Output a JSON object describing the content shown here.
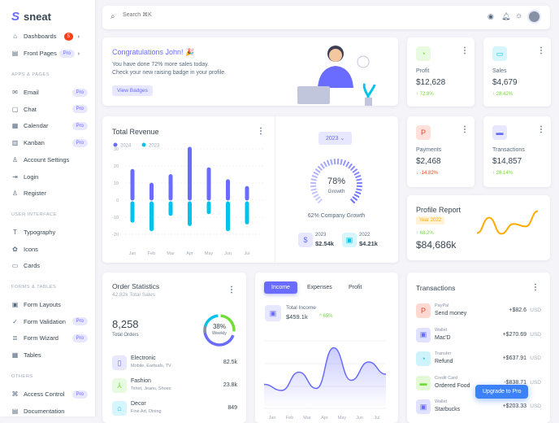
{
  "brand": "sneat",
  "sidebar": {
    "items": [
      {
        "label": "Dashboards",
        "icon": "home-icon",
        "badge": "5",
        "chevron": "›"
      },
      {
        "label": "Front Pages",
        "icon": "file-icon",
        "badge": "Pro",
        "chevron": "›"
      }
    ],
    "sections": [
      {
        "title": "APPS & PAGES",
        "items": [
          {
            "label": "Email",
            "icon": "mail-icon",
            "badge": "Pro"
          },
          {
            "label": "Chat",
            "icon": "chat-icon",
            "badge": "Pro"
          },
          {
            "label": "Calendar",
            "icon": "calendar-icon",
            "badge": "Pro"
          },
          {
            "label": "Kanban",
            "icon": "kanban-icon",
            "badge": "Pro"
          },
          {
            "label": "Account Settings",
            "icon": "user-icon"
          },
          {
            "label": "Login",
            "icon": "login-icon"
          },
          {
            "label": "Register",
            "icon": "user-plus-icon"
          }
        ]
      },
      {
        "title": "USER INTERFACE",
        "items": [
          {
            "label": "Typography",
            "icon": "typography-icon"
          },
          {
            "label": "Icons",
            "icon": "crown-icon"
          },
          {
            "label": "Cards",
            "icon": "card-icon"
          }
        ]
      },
      {
        "title": "FORMS & TABLES",
        "items": [
          {
            "label": "Form Layouts",
            "icon": "layout-icon"
          },
          {
            "label": "Form Validation",
            "icon": "check-circle-icon",
            "badge": "Pro"
          },
          {
            "label": "Form Wizard",
            "icon": "wizard-icon",
            "badge": "Pro"
          },
          {
            "label": "Tables",
            "icon": "table-icon"
          }
        ]
      },
      {
        "title": "OTHERS",
        "items": [
          {
            "label": "Access Control",
            "icon": "command-icon",
            "badge": "Pro"
          },
          {
            "label": "Documentation",
            "icon": "doc-icon"
          }
        ]
      }
    ]
  },
  "navbar": {
    "search_placeholder": "Search ⌘K"
  },
  "congrats": {
    "title": "Congratulations John! 🎉",
    "line1": "You have done 72% more sales today.",
    "line2": "Check your new raising badge in your profile.",
    "button": "View Badges"
  },
  "stats": [
    {
      "label": "Profit",
      "value": "$12,628",
      "change": "↑ 72.8%",
      "trend": "up",
      "color": "#71dd37"
    },
    {
      "label": "Sales",
      "value": "$4,679",
      "change": "↑ 28.42%",
      "trend": "up",
      "color": "#03c3ec"
    },
    {
      "label": "Payments",
      "value": "$2,468",
      "change": "↓ -14.82%",
      "trend": "down",
      "color": "#ff3e1d"
    },
    {
      "label": "Transactions",
      "value": "$14,857",
      "change": "↑ 28.14%",
      "trend": "up",
      "color": "#696cff"
    }
  ],
  "revenue": {
    "title": "Total Revenue",
    "year_select": "2023",
    "growth_pct": "78%",
    "growth_label": "Growth",
    "company_growth": "62% Company Growth",
    "summary": [
      {
        "year": "2023",
        "value": "$2.54k"
      },
      {
        "year": "2022",
        "value": "$4.21k"
      }
    ]
  },
  "chart_data": [
    {
      "type": "bar",
      "title": "Total Revenue",
      "categories": [
        "Jan",
        "Feb",
        "Mar",
        "Apr",
        "May",
        "Jun",
        "Jul"
      ],
      "series": [
        {
          "name": "2024",
          "color": "#696cff",
          "values": [
            17,
            9,
            14,
            30,
            18,
            11,
            7
          ]
        },
        {
          "name": "2023",
          "color": "#03c3ec",
          "values": [
            -12,
            -17,
            -8,
            -14,
            -7,
            -17,
            -13
          ]
        }
      ],
      "ylim": [
        -20,
        30
      ],
      "yticks": [
        30,
        20,
        10,
        0,
        -10,
        -20
      ],
      "legend": "top-left",
      "grid": true
    },
    {
      "type": "line",
      "title": "Total Income",
      "categories": [
        "",
        "Jan",
        "Feb",
        "Mar",
        "Apr",
        "May",
        "Jun",
        "Jul"
      ],
      "values": [
        24,
        21,
        30,
        22,
        42,
        26,
        35,
        29
      ],
      "area": true,
      "color": "#696cff"
    }
  ],
  "profile_report": {
    "title": "Profile Report",
    "badge": "Year 2022",
    "change": "↑ 68.2%",
    "value": "$84,686k",
    "line": [
      30,
      72,
      28,
      55,
      48,
      90
    ]
  },
  "order_stats": {
    "title": "Order Statistics",
    "subtitle": "42.82k Total Sales",
    "total": "8,258",
    "total_label": "Total Orders",
    "pct": "38%",
    "pct_label": "Weekly",
    "items": [
      {
        "name": "Electronic",
        "desc": "Mobile, Earbuds, TV",
        "value": "82.5k",
        "icon": "mobile-icon"
      },
      {
        "name": "Fashion",
        "desc": "Tshirt, Jeans, Shoes",
        "value": "23.8k",
        "icon": "hanger-icon"
      },
      {
        "name": "Decor",
        "desc": "Fine Art, Dining",
        "value": "849",
        "icon": "house-icon"
      }
    ]
  },
  "income": {
    "tabs": [
      "Income",
      "Expenses",
      "Profit"
    ],
    "active_tab": "Income",
    "label": "Total Income",
    "value": "$459.1k",
    "change": "^ 65%"
  },
  "transactions": {
    "title": "Transactions",
    "currency": "USD",
    "items": [
      {
        "type": "PayPal",
        "name": "Send money",
        "amount": "+$82.6",
        "icon": "paypal-icon",
        "color": "#ff3e1d"
      },
      {
        "type": "Wallet",
        "name": "Mac'D",
        "amount": "+$270.69",
        "icon": "wallet-icon",
        "color": "#696cff"
      },
      {
        "type": "Transfer",
        "name": "Refund",
        "amount": "+$637.91",
        "icon": "chart-icon",
        "color": "#03c3ec"
      },
      {
        "type": "Credit Card",
        "name": "Ordered Food",
        "amount": "-$838.71",
        "icon": "credit-card-icon",
        "color": "#71dd37"
      },
      {
        "type": "Wallet",
        "name": "Starbucks",
        "amount": "+$203.33",
        "icon": "wallet-icon",
        "color": "#696cff"
      }
    ]
  },
  "upgrade_button": "Upgrade to Pro"
}
